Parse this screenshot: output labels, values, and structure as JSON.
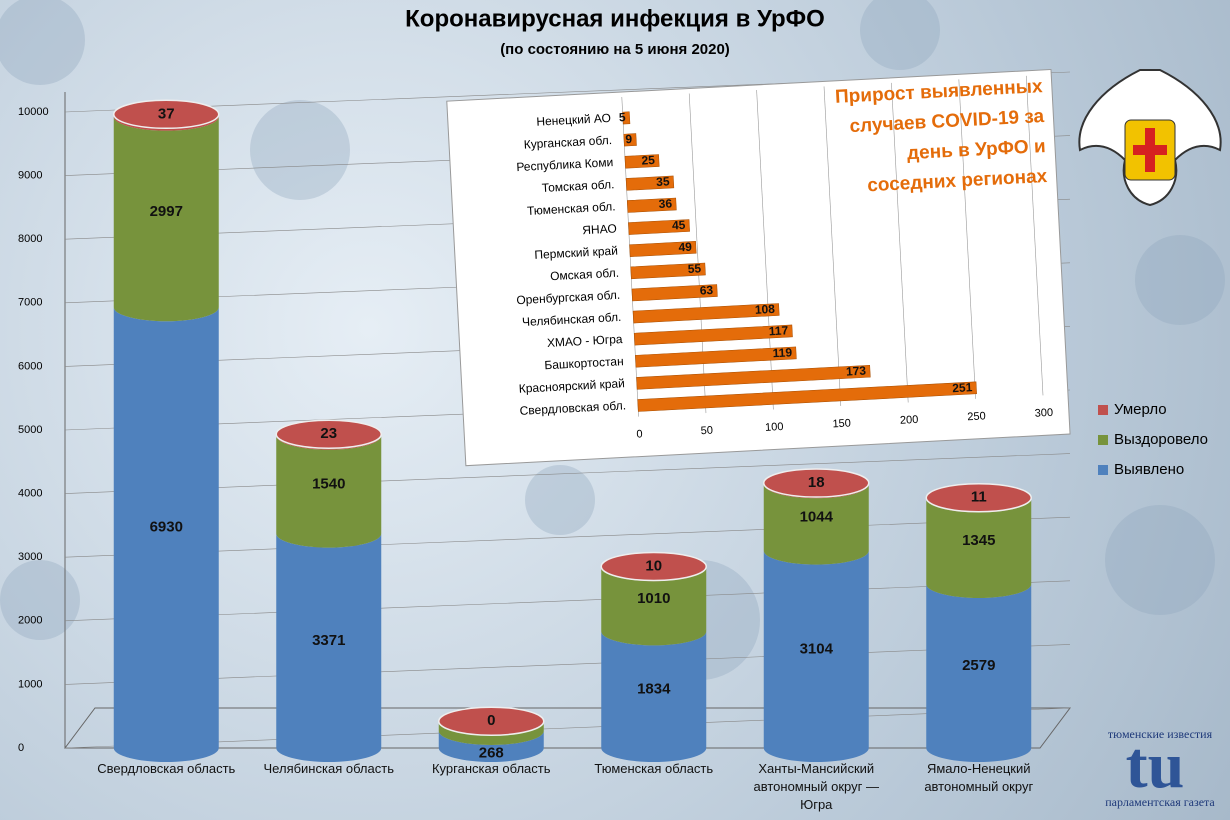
{
  "chart_data": [
    {
      "type": "cylinder_stacked_bar",
      "title": "Коронавирусная инфекция в УрФО",
      "subtitle": "(по состоянию на 5 июня 2020)",
      "categories": [
        "Свердловская область",
        "Челябинская область",
        "Курганская область",
        "Тюменская область",
        "Ханты-Мансийский автономный округ — Югра",
        "Ямало-Ненецкий автономный округ"
      ],
      "series": [
        {
          "name": "Выявлено",
          "color": "#4f81bd",
          "values": [
            6930,
            3371,
            268,
            1834,
            3104,
            2579
          ]
        },
        {
          "name": "Выздоровело",
          "color": "#77933c",
          "values": [
            2997,
            1540,
            153,
            1010,
            1044,
            1345
          ]
        },
        {
          "name": "Умерло",
          "color": "#c0504d",
          "values": [
            37,
            23,
            0,
            10,
            18,
            11
          ]
        }
      ],
      "ylim": [
        0,
        10000
      ],
      "yticks": [
        0,
        1000,
        2000,
        3000,
        4000,
        5000,
        6000,
        7000,
        8000,
        9000,
        10000
      ],
      "grid": true,
      "legend": "right"
    },
    {
      "type": "hbar",
      "title": "Прирост выявленных случаев COVID-19 за день в УрФО и соседних регионах",
      "categories": [
        "Ненецкий АО",
        "Курганская обл.",
        "Республика Коми",
        "Томская обл.",
        "Тюменская обл.",
        "ЯНАО",
        "Пермский край",
        "Омская обл.",
        "Оренбургская обл.",
        "Челябинская обл.",
        "ХМАО - Югра",
        "Башкортостан",
        "Красноярский край",
        "Свердловская обл."
      ],
      "values": [
        5,
        9,
        25,
        35,
        36,
        45,
        49,
        55,
        63,
        108,
        117,
        119,
        173,
        251
      ],
      "color": "#e46c0a",
      "xlim": [
        0,
        300
      ],
      "xticks": [
        0,
        50,
        100,
        150,
        200,
        250,
        300
      ],
      "grid": true
    }
  ],
  "branding": {
    "top": "тюменские известия",
    "logo": "tu",
    "bottom": "парламентская газета"
  }
}
